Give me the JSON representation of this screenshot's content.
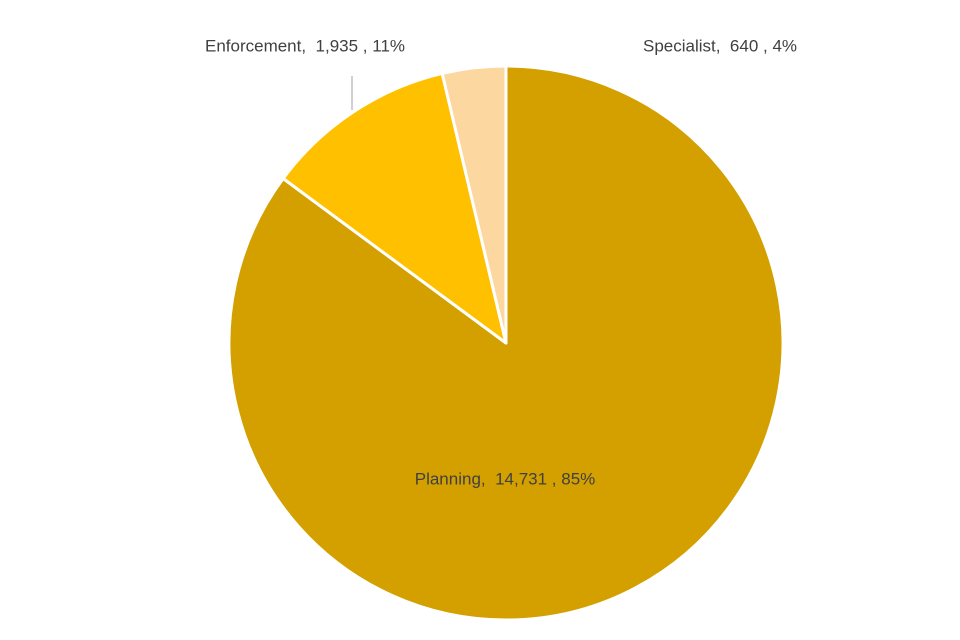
{
  "chart_data": {
    "type": "pie",
    "series": [
      {
        "name": "Planning",
        "color": "#d3a000"
      },
      {
        "name": "Enforcement",
        "color": "#ffc000"
      },
      {
        "name": "Specialist",
        "color": "#fdd7a0"
      }
    ],
    "values": [
      14731,
      1935,
      640
    ],
    "value_labels": [
      "Planning,  14,731 , 85%",
      "Enforcement,  1,935 , 11%",
      "Specialist,  640 , 4%"
    ],
    "start_angle": 0,
    "direction": "clockwise"
  }
}
